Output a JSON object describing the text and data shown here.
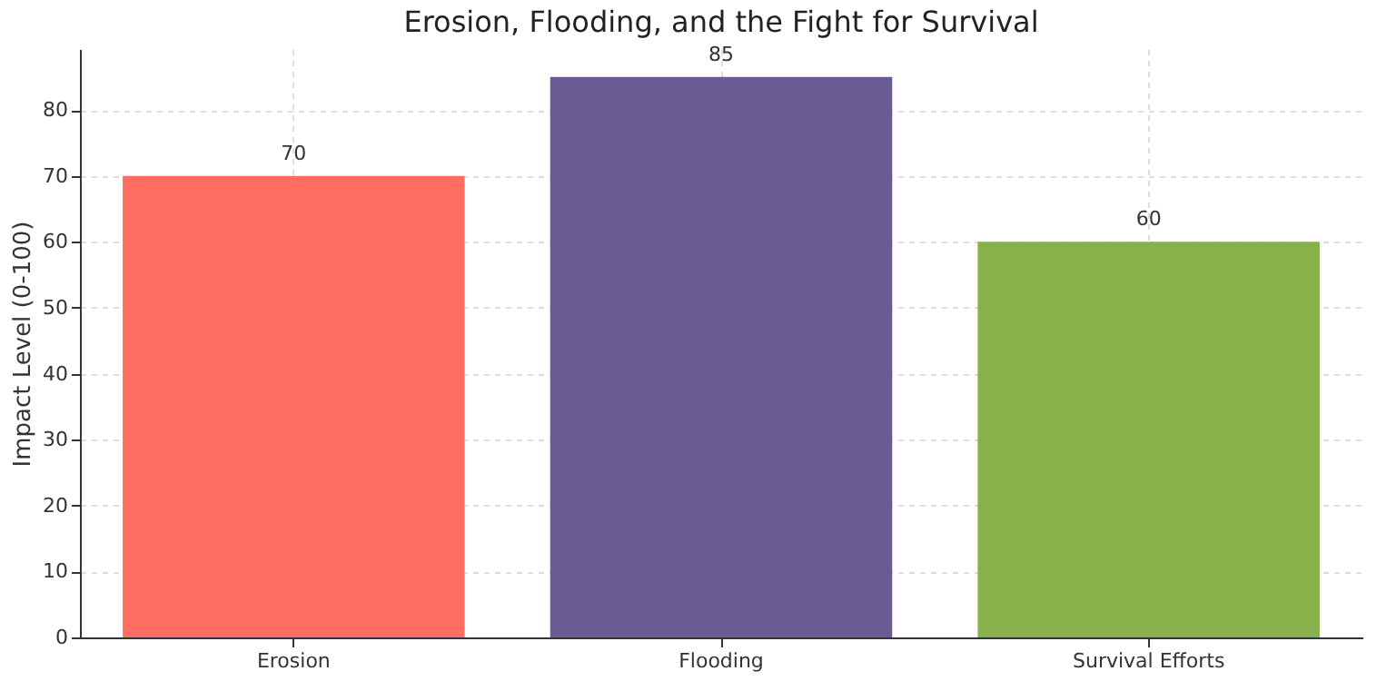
{
  "chart_data": {
    "type": "bar",
    "title": "Erosion, Flooding, and the Fight for Survival",
    "ylabel": "Impact Level (0-100)",
    "categories": [
      "Erosion",
      "Flooding",
      "Survival Efforts"
    ],
    "values": [
      70,
      85,
      60
    ],
    "colors": [
      "#ff6f61",
      "#6b5b95",
      "#88b04b"
    ],
    "ylim": [
      0,
      89.25
    ],
    "yticks": [
      0,
      10,
      20,
      30,
      40,
      50,
      60,
      70,
      80
    ],
    "grid": true,
    "data_labels": true
  }
}
